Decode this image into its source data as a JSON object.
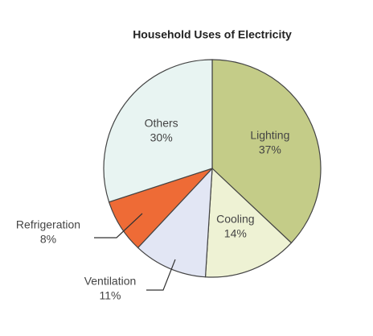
{
  "chart_data": {
    "type": "pie",
    "title": "Household Uses of Electricity",
    "categories": [
      "Lighting",
      "Cooling",
      "Ventilation",
      "Refrigeration",
      "Others"
    ],
    "values": [
      37,
      14,
      11,
      8,
      30
    ],
    "value_labels": [
      "37%",
      "14%",
      "11%",
      "8%",
      "30%"
    ],
    "colors": [
      "#c4cc88",
      "#eef2d4",
      "#e2e6f4",
      "#ee6b36",
      "#e8f4f2"
    ]
  }
}
